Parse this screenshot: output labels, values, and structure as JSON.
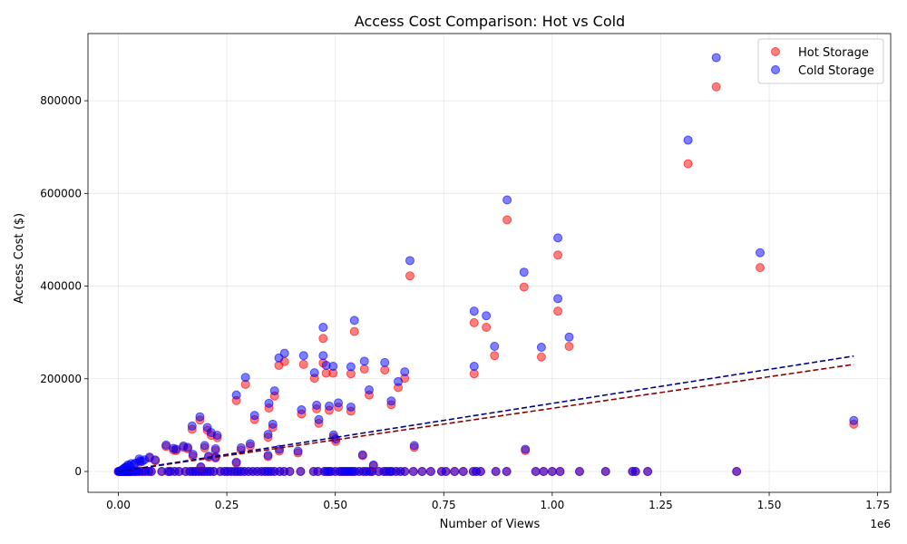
{
  "chart_data": {
    "type": "scatter",
    "title": "Access Cost Comparison: Hot vs Cold",
    "xlabel": "Number of Views",
    "ylabel": "Access Cost ($)",
    "x_offset_label": "1e6",
    "xlim": [
      -70000,
      1780000
    ],
    "ylim": [
      -45000,
      945000
    ],
    "x_ticks": [
      0,
      250000,
      500000,
      750000,
      1000000,
      1250000,
      1500000,
      1750000
    ],
    "x_tick_labels": [
      "0.00",
      "0.25",
      "0.50",
      "0.75",
      "1.00",
      "1.25",
      "1.50",
      "1.75"
    ],
    "y_ticks": [
      0,
      200000,
      400000,
      600000,
      800000
    ],
    "y_tick_labels": [
      "0",
      "200000",
      "400000",
      "600000",
      "800000"
    ],
    "grid": true,
    "legend": {
      "placement": "top-right"
    },
    "series": [
      {
        "name": "Hot Storage",
        "color": "#ff0000",
        "trendline": {
          "x0": 0,
          "y0": 0,
          "x1": 1695000,
          "y1": 231000,
          "color": "#8b0000"
        },
        "points": [
          [
            1378000,
            830000
          ],
          [
            1313000,
            664000
          ],
          [
            896000,
            543000
          ],
          [
            1013000,
            467000
          ],
          [
            1479000,
            440000
          ],
          [
            672000,
            422000
          ],
          [
            935000,
            398000
          ],
          [
            1013000,
            346000
          ],
          [
            820000,
            321000
          ],
          [
            848000,
            311000
          ],
          [
            544000,
            302000
          ],
          [
            472000,
            287000
          ],
          [
            1039000,
            270000
          ],
          [
            867000,
            250000
          ],
          [
            975000,
            247000
          ],
          [
            383000,
            237000
          ],
          [
            472000,
            234000
          ],
          [
            370000,
            229000
          ],
          [
            427000,
            231000
          ],
          [
            567000,
            221000
          ],
          [
            614000,
            219000
          ],
          [
            479000,
            212000
          ],
          [
            495000,
            212000
          ],
          [
            536000,
            211000
          ],
          [
            820000,
            211000
          ],
          [
            452000,
            201000
          ],
          [
            660000,
            201000
          ],
          [
            293000,
            188000
          ],
          [
            645000,
            181000
          ],
          [
            578000,
            165000
          ],
          [
            360000,
            163000
          ],
          [
            272000,
            153000
          ],
          [
            629000,
            144000
          ],
          [
            507000,
            139000
          ],
          [
            347000,
            137000
          ],
          [
            457000,
            135000
          ],
          [
            486000,
            132000
          ],
          [
            536000,
            130000
          ],
          [
            422000,
            124000
          ],
          [
            314000,
            112000
          ],
          [
            188000,
            111000
          ],
          [
            462000,
            104000
          ],
          [
            356000,
            95000
          ],
          [
            170000,
            91000
          ],
          [
            205000,
            89000
          ],
          [
            214000,
            78000
          ],
          [
            228000,
            73000
          ],
          [
            496000,
            74000
          ],
          [
            345000,
            74000
          ],
          [
            501000,
            65000
          ],
          [
            110000,
            54000
          ],
          [
            150000,
            52000
          ],
          [
            160000,
            49000
          ],
          [
            199000,
            51000
          ],
          [
            304000,
            55000
          ],
          [
            133000,
            45000
          ],
          [
            127000,
            46000
          ],
          [
            414000,
            40000
          ],
          [
            283000,
            46000
          ],
          [
            224000,
            45000
          ],
          [
            371000,
            44000
          ],
          [
            938000,
            45000
          ],
          [
            682000,
            52000
          ],
          [
            172000,
            33000
          ],
          [
            208000,
            31000
          ],
          [
            224000,
            29000
          ],
          [
            345000,
            32000
          ],
          [
            72000,
            29000
          ],
          [
            85000,
            23000
          ],
          [
            50000,
            20000
          ],
          [
            272000,
            18000
          ],
          [
            563000,
            34000
          ],
          [
            190000,
            9000
          ],
          [
            588000,
            12000
          ],
          [
            1695000,
            102000
          ]
        ]
      },
      {
        "name": "Cold Storage",
        "color": "#0000ff",
        "trendline": {
          "x0": 0,
          "y0": 0,
          "x1": 1695000,
          "y1": 249000,
          "color": "#00008b"
        },
        "points": [
          [
            1378000,
            893000
          ],
          [
            1313000,
            715000
          ],
          [
            896000,
            586000
          ],
          [
            1013000,
            504000
          ],
          [
            1479000,
            472000
          ],
          [
            672000,
            455000
          ],
          [
            935000,
            430000
          ],
          [
            1013000,
            373000
          ],
          [
            820000,
            346000
          ],
          [
            848000,
            336000
          ],
          [
            544000,
            326000
          ],
          [
            472000,
            311000
          ],
          [
            1039000,
            290000
          ],
          [
            867000,
            270000
          ],
          [
            975000,
            268000
          ],
          [
            383000,
            255000
          ],
          [
            472000,
            250000
          ],
          [
            370000,
            245000
          ],
          [
            427000,
            250000
          ],
          [
            567000,
            238000
          ],
          [
            614000,
            235000
          ],
          [
            479000,
            229000
          ],
          [
            495000,
            227000
          ],
          [
            536000,
            226000
          ],
          [
            820000,
            227000
          ],
          [
            452000,
            213000
          ],
          [
            660000,
            215000
          ],
          [
            293000,
            203000
          ],
          [
            645000,
            194000
          ],
          [
            578000,
            176000
          ],
          [
            360000,
            174000
          ],
          [
            272000,
            165000
          ],
          [
            629000,
            152000
          ],
          [
            507000,
            148000
          ],
          [
            347000,
            147000
          ],
          [
            457000,
            143000
          ],
          [
            486000,
            141000
          ],
          [
            536000,
            139000
          ],
          [
            422000,
            133000
          ],
          [
            314000,
            121000
          ],
          [
            188000,
            118000
          ],
          [
            462000,
            112000
          ],
          [
            356000,
            102000
          ],
          [
            170000,
            98000
          ],
          [
            205000,
            95000
          ],
          [
            214000,
            84000
          ],
          [
            228000,
            78000
          ],
          [
            496000,
            79000
          ],
          [
            345000,
            80000
          ],
          [
            501000,
            70000
          ],
          [
            110000,
            57000
          ],
          [
            150000,
            55000
          ],
          [
            160000,
            52000
          ],
          [
            199000,
            56000
          ],
          [
            304000,
            60000
          ],
          [
            133000,
            48000
          ],
          [
            127000,
            50000
          ],
          [
            414000,
            44000
          ],
          [
            283000,
            51000
          ],
          [
            224000,
            49000
          ],
          [
            371000,
            48000
          ],
          [
            938000,
            48000
          ],
          [
            682000,
            56000
          ],
          [
            172000,
            37000
          ],
          [
            208000,
            33000
          ],
          [
            224000,
            31000
          ],
          [
            345000,
            35000
          ],
          [
            72000,
            31000
          ],
          [
            85000,
            25000
          ],
          [
            50000,
            23000
          ],
          [
            272000,
            20000
          ],
          [
            563000,
            36000
          ],
          [
            190000,
            10000
          ],
          [
            588000,
            14000
          ],
          [
            1695000,
            110000
          ],
          [
            48000,
            27000
          ],
          [
            55000,
            22000
          ],
          [
            30000,
            17000
          ],
          [
            22000,
            14000
          ],
          [
            18000,
            10000
          ],
          [
            15000,
            8000
          ],
          [
            12000,
            6000
          ],
          [
            25000,
            12000
          ],
          [
            35000,
            15000
          ],
          [
            40000,
            18000
          ],
          [
            60000,
            25000
          ],
          [
            10000,
            4000
          ],
          [
            8000,
            3000
          ],
          [
            6000,
            2000
          ]
        ]
      }
    ],
    "zero_cost_x": [
      0,
      2000,
      4000,
      6000,
      8000,
      10000,
      12000,
      14000,
      16000,
      18000,
      20000,
      22000,
      24000,
      26000,
      28000,
      30000,
      34000,
      38000,
      42000,
      48000,
      55000,
      62000,
      70000,
      76000,
      100000,
      115000,
      120000,
      130000,
      140000,
      155000,
      165000,
      172000,
      178000,
      185000,
      192000,
      198000,
      205000,
      212000,
      220000,
      235000,
      245000,
      252000,
      260000,
      268000,
      275000,
      282000,
      290000,
      300000,
      310000,
      320000,
      330000,
      338000,
      345000,
      352000,
      360000,
      372000,
      382000,
      395000,
      420000,
      450000,
      460000,
      475000,
      480000,
      485000,
      490000,
      500000,
      510000,
      515000,
      520000,
      525000,
      530000,
      535000,
      540000,
      545000,
      555000,
      565000,
      572000,
      580000,
      585000,
      600000,
      612000,
      618000,
      625000,
      630000,
      640000,
      650000,
      660000,
      680000,
      700000,
      720000,
      745000,
      755000,
      775000,
      795000,
      818000,
      825000,
      835000,
      870000,
      895000,
      962000,
      980000,
      1000000,
      1018000,
      1063000,
      1123000,
      1185000,
      1192000,
      1220000,
      1425000
    ]
  }
}
